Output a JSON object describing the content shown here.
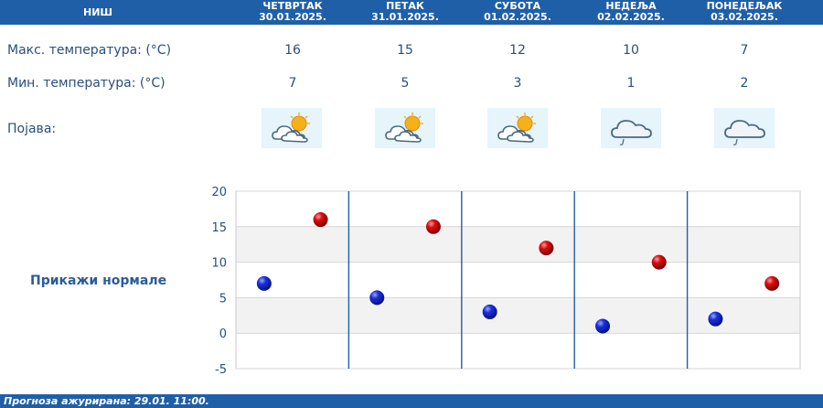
{
  "header": {
    "city": "НИШ",
    "days": [
      {
        "name": "ЧЕТВРТАК",
        "date": "30.01.2025."
      },
      {
        "name": "ПЕТАК",
        "date": "31.01.2025."
      },
      {
        "name": "СУБОТА",
        "date": "01.02.2025."
      },
      {
        "name": "НЕДЕЉА",
        "date": "02.02.2025."
      },
      {
        "name": "ПОНЕДЕЉАК",
        "date": "03.02.2025."
      }
    ]
  },
  "rows": {
    "max_label": "Макс. температура: (°C)",
    "min_label": "Мин. температура: (°C)",
    "phenomenon_label": "Појава:",
    "max_values": [
      "16",
      "15",
      "12",
      "10",
      "7"
    ],
    "min_values": [
      "7",
      "5",
      "3",
      "1",
      "2"
    ],
    "phenomenon_icons": [
      "cloud-sun-icon",
      "cloud-sun-icon",
      "cloud-sun-icon",
      "cloud-drizzle-icon",
      "cloud-drizzle-icon"
    ]
  },
  "normals_link": "Прикажи нормале",
  "chart_data": {
    "type": "scatter",
    "categories": [
      "30.01.2025.",
      "31.01.2025.",
      "01.02.2025.",
      "02.02.2025.",
      "03.02.2025."
    ],
    "series": [
      {
        "color": "#0a1fcc",
        "values": [
          7,
          5,
          3,
          1,
          2
        ]
      },
      {
        "color": "#d10a0a",
        "values": [
          16,
          15,
          12,
          10,
          7
        ]
      }
    ],
    "ylim": [
      -5,
      20
    ],
    "yticks": [
      "20",
      "15",
      "10",
      "5",
      "0",
      "-5"
    ],
    "grid": true
  },
  "footer": {
    "text": "Прогноза ажурирана:  29.01. 11:00."
  },
  "colors": {
    "header_bg": "#1f5fa8",
    "text": "#2a4f7f",
    "icon_bg": "#e6f4fb"
  }
}
